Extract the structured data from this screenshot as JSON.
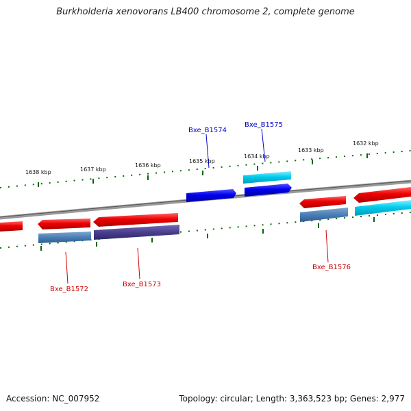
{
  "title": "Burkholderia xenovorans LB400 chromosome 2, complete genome",
  "footer": {
    "accession": "Accession: NC_007952",
    "topology": "Topology: circular; Length: 3,363,523 bp; Genes: 2,977"
  },
  "scale_labels": [
    "1638 kbp",
    "1637 kbp",
    "1636 kbp",
    "1635 kbp",
    "1634 kbp",
    "1633 kbp",
    "1632 kbp"
  ],
  "gene_labels": [
    {
      "text": "Bxe_B1574",
      "color": "#0000cc"
    },
    {
      "text": "Bxe_B1575",
      "color": "#0000cc"
    },
    {
      "text": "Bxe_B1572",
      "color": "#cc0000"
    },
    {
      "text": "Bxe_B1573",
      "color": "#cc0000"
    },
    {
      "text": "Bxe_B1576",
      "color": "#cc0000"
    }
  ],
  "colors": {
    "backbone": "#808080",
    "cds_red": "#ee0000",
    "cds_blue": "#0000ee",
    "cds_cyan": "#00ccee",
    "feature_steel": "#4a7fb5",
    "feature_slate": "#4a3f8f",
    "tick_green": "#006600"
  }
}
